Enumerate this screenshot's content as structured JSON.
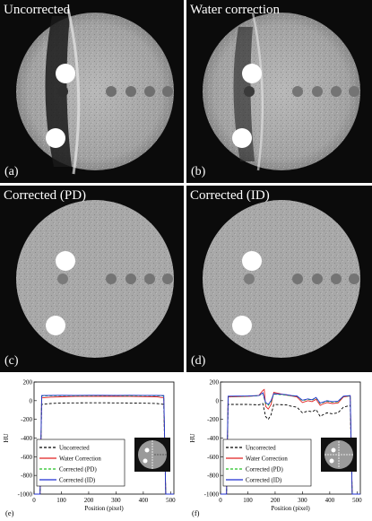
{
  "panels": [
    {
      "title": "Uncorrected",
      "letter": "(a)",
      "correction": "uncorrected"
    },
    {
      "title": "Water correction",
      "letter": "(b)",
      "correction": "water"
    },
    {
      "title": "Corrected (PD)",
      "letter": "(c)",
      "correction": "pd"
    },
    {
      "title": "Corrected (ID)",
      "letter": "(d)",
      "correction": "id"
    }
  ],
  "chart_data": [
    {
      "type": "line",
      "letter": "(e)",
      "xlabel": "Position (pixel)",
      "ylabel": "HU",
      "xlim": [
        0,
        512
      ],
      "ylim": [
        -1000,
        200
      ],
      "xticks": [
        0,
        100,
        200,
        300,
        400,
        500
      ],
      "yticks": [
        200,
        0,
        -200,
        -400,
        -600,
        -800,
        -1000
      ],
      "series": [
        {
          "name": "Uncorrected",
          "color": "#000000",
          "dash": "3,2",
          "points": [
            [
              0,
              -1000
            ],
            [
              22,
              -1000
            ],
            [
              28,
              -40
            ],
            [
              60,
              -30
            ],
            [
              100,
              -25
            ],
            [
              150,
              -24
            ],
            [
              200,
              -23
            ],
            [
              250,
              -23
            ],
            [
              300,
              -24
            ],
            [
              350,
              -25
            ],
            [
              400,
              -27
            ],
            [
              450,
              -30
            ],
            [
              475,
              -40
            ],
            [
              482,
              -1000
            ],
            [
              512,
              -1000
            ]
          ]
        },
        {
          "name": "Water Correction",
          "color": "#e02020",
          "dash": "",
          "points": [
            [
              0,
              -1000
            ],
            [
              22,
              -1000
            ],
            [
              28,
              30
            ],
            [
              60,
              38
            ],
            [
              100,
              42
            ],
            [
              150,
              45
            ],
            [
              200,
              45
            ],
            [
              250,
              46
            ],
            [
              300,
              46
            ],
            [
              350,
              45
            ],
            [
              400,
              44
            ],
            [
              450,
              42
            ],
            [
              475,
              30
            ],
            [
              482,
              -1000
            ],
            [
              512,
              -1000
            ]
          ]
        },
        {
          "name": "Corrected (PD)",
          "color": "#20c020",
          "dash": "3,2",
          "points": [
            [
              0,
              -1000
            ],
            [
              22,
              -1000
            ],
            [
              28,
              50
            ],
            [
              60,
              52
            ],
            [
              100,
              53
            ],
            [
              150,
              53
            ],
            [
              200,
              54
            ],
            [
              250,
              54
            ],
            [
              300,
              54
            ],
            [
              350,
              53
            ],
            [
              400,
              53
            ],
            [
              450,
              52
            ],
            [
              475,
              50
            ],
            [
              482,
              -1000
            ],
            [
              512,
              -1000
            ]
          ]
        },
        {
          "name": "Corrected (ID)",
          "color": "#1f2fd0",
          "dash": "",
          "points": [
            [
              0,
              -1000
            ],
            [
              22,
              -1000
            ],
            [
              28,
              55
            ],
            [
              60,
              56
            ],
            [
              100,
              58
            ],
            [
              150,
              57
            ],
            [
              200,
              58
            ],
            [
              250,
              58
            ],
            [
              300,
              57
            ],
            [
              350,
              58
            ],
            [
              400,
              57
            ],
            [
              450,
              56
            ],
            [
              475,
              55
            ],
            [
              482,
              -1000
            ],
            [
              512,
              -1000
            ]
          ]
        }
      ]
    },
    {
      "type": "line",
      "letter": "(f)",
      "xlabel": "Position (pixel)",
      "ylabel": "HU",
      "xlim": [
        0,
        512
      ],
      "ylim": [
        -1000,
        200
      ],
      "xticks": [
        0,
        100,
        200,
        300,
        400,
        500
      ],
      "yticks": [
        200,
        0,
        -200,
        -400,
        -600,
        -800,
        -1000
      ],
      "series": [
        {
          "name": "Uncorrected",
          "color": "#000000",
          "dash": "3,2",
          "points": [
            [
              0,
              -1000
            ],
            [
              22,
              -1000
            ],
            [
              28,
              -40
            ],
            [
              100,
              -40
            ],
            [
              140,
              -45
            ],
            [
              155,
              -30
            ],
            [
              165,
              -170
            ],
            [
              175,
              -200
            ],
            [
              185,
              -150
            ],
            [
              195,
              -40
            ],
            [
              240,
              -45
            ],
            [
              260,
              -60
            ],
            [
              280,
              -70
            ],
            [
              300,
              -130
            ],
            [
              320,
              -110
            ],
            [
              335,
              -120
            ],
            [
              350,
              -95
            ],
            [
              365,
              -170
            ],
            [
              375,
              -150
            ],
            [
              390,
              -130
            ],
            [
              410,
              -140
            ],
            [
              430,
              -130
            ],
            [
              450,
              -70
            ],
            [
              475,
              -50
            ],
            [
              482,
              -1000
            ],
            [
              512,
              -1000
            ]
          ]
        },
        {
          "name": "Water Correction",
          "color": "#e02020",
          "dash": "",
          "points": [
            [
              0,
              -1000
            ],
            [
              22,
              -1000
            ],
            [
              28,
              40
            ],
            [
              100,
              45
            ],
            [
              140,
              55
            ],
            [
              155,
              110
            ],
            [
              160,
              120
            ],
            [
              165,
              -60
            ],
            [
              175,
              -90
            ],
            [
              185,
              -40
            ],
            [
              195,
              90
            ],
            [
              240,
              60
            ],
            [
              260,
              50
            ],
            [
              280,
              40
            ],
            [
              300,
              -20
            ],
            [
              320,
              0
            ],
            [
              335,
              -10
            ],
            [
              350,
              15
            ],
            [
              365,
              -50
            ],
            [
              375,
              -35
            ],
            [
              390,
              -20
            ],
            [
              410,
              -30
            ],
            [
              430,
              -25
            ],
            [
              450,
              40
            ],
            [
              475,
              50
            ],
            [
              482,
              -1000
            ],
            [
              512,
              -1000
            ]
          ]
        },
        {
          "name": "Corrected (PD)",
          "color": "#20c020",
          "dash": "3,2",
          "points": [
            [
              0,
              -1000
            ],
            [
              22,
              -1000
            ],
            [
              28,
              45
            ],
            [
              100,
              48
            ],
            [
              140,
              52
            ],
            [
              155,
              80
            ],
            [
              165,
              -30
            ],
            [
              175,
              -50
            ],
            [
              185,
              -10
            ],
            [
              195,
              70
            ],
            [
              240,
              60
            ],
            [
              260,
              52
            ],
            [
              280,
              48
            ],
            [
              300,
              0
            ],
            [
              320,
              15
            ],
            [
              335,
              5
            ],
            [
              350,
              30
            ],
            [
              365,
              -30
            ],
            [
              375,
              -20
            ],
            [
              390,
              -5
            ],
            [
              410,
              -15
            ],
            [
              430,
              -10
            ],
            [
              450,
              45
            ],
            [
              475,
              52
            ],
            [
              482,
              -1000
            ],
            [
              512,
              -1000
            ]
          ]
        },
        {
          "name": "Corrected (ID)",
          "color": "#1f2fd0",
          "dash": "",
          "points": [
            [
              0,
              -1000
            ],
            [
              22,
              -1000
            ],
            [
              28,
              48
            ],
            [
              100,
              50
            ],
            [
              140,
              55
            ],
            [
              155,
              85
            ],
            [
              165,
              -20
            ],
            [
              175,
              -40
            ],
            [
              185,
              0
            ],
            [
              195,
              75
            ],
            [
              240,
              65
            ],
            [
              260,
              55
            ],
            [
              280,
              50
            ],
            [
              300,
              5
            ],
            [
              320,
              20
            ],
            [
              335,
              10
            ],
            [
              350,
              35
            ],
            [
              365,
              -25
            ],
            [
              375,
              -15
            ],
            [
              390,
              0
            ],
            [
              410,
              -10
            ],
            [
              430,
              -5
            ],
            [
              450,
              48
            ],
            [
              475,
              55
            ],
            [
              482,
              -1000
            ],
            [
              512,
              -1000
            ]
          ]
        }
      ]
    }
  ]
}
